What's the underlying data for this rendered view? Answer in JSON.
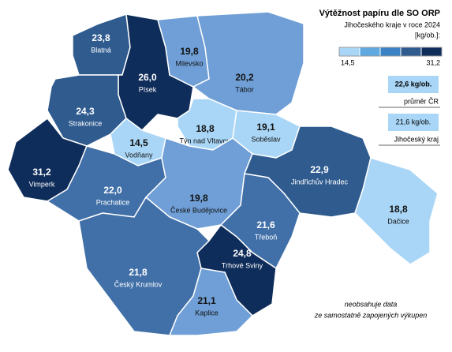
{
  "title": "Výtěžnost papíru dle SO ORP",
  "subtitle": "Jihočeského kraje v roce 2024",
  "unit": "[kg/ob.]:",
  "legend": {
    "colors": [
      "#a9d6f6",
      "#5fa8e0",
      "#3a82c4",
      "#2f5b8f",
      "#0f2d5a"
    ],
    "ticks": [
      {
        "value": 14.5,
        "label": "14,5"
      },
      {
        "value": 31.2,
        "label": "31,2"
      }
    ]
  },
  "regions": [
    {
      "name": "Blatná",
      "value": 23.8,
      "value_label": "23,8",
      "color": "#2f5b8f"
    },
    {
      "name": "Písek",
      "value": 26.0,
      "value_label": "26,0",
      "color": "#0f2d5a"
    },
    {
      "name": "Milevsko",
      "value": 19.8,
      "value_label": "19,8",
      "color": "#6f9fd6"
    },
    {
      "name": "Tábor",
      "value": 20.2,
      "value_label": "20,2",
      "color": "#6f9fd6"
    },
    {
      "name": "Strakonice",
      "value": 24.3,
      "value_label": "24,3",
      "color": "#2f5b8f"
    },
    {
      "name": "Vodňany",
      "value": 14.5,
      "value_label": "14,5",
      "color": "#a9d6f6"
    },
    {
      "name": "Týn nad Vltavou",
      "value": 18.8,
      "value_label": "18,8",
      "color": "#a9d6f6"
    },
    {
      "name": "Soběslav",
      "value": 19.1,
      "value_label": "19,1",
      "color": "#a9d6f6"
    },
    {
      "name": "Vimperk",
      "value": 31.2,
      "value_label": "31,2",
      "color": "#0f2d5a"
    },
    {
      "name": "Prachatice",
      "value": 22.0,
      "value_label": "22,0",
      "color": "#4170a8"
    },
    {
      "name": "České Budějovice",
      "value": 19.8,
      "value_label": "19,8",
      "color": "#6f9fd6"
    },
    {
      "name": "Jindřichův Hradec",
      "value": 22.9,
      "value_label": "22,9",
      "color": "#2f5b8f"
    },
    {
      "name": "Dačice",
      "value": 18.8,
      "value_label": "18,8",
      "color": "#a9d6f6"
    },
    {
      "name": "Třeboň",
      "value": 21.6,
      "value_label": "21,6",
      "color": "#4170a8"
    },
    {
      "name": "Trhové Sviny",
      "value": 24.8,
      "value_label": "24,8",
      "color": "#0f2d5a"
    },
    {
      "name": "Český Krumlov",
      "value": 21.8,
      "value_label": "21,8",
      "color": "#4170a8"
    },
    {
      "name": "Kaplice",
      "value": 21.1,
      "value_label": "21,1",
      "color": "#6f9fd6"
    }
  ],
  "reference": [
    {
      "value": 22.6,
      "value_label": "22,6 kg/ob.",
      "label": "průměr ČR"
    },
    {
      "value": 21.6,
      "value_label": "21,6 kg/ob.",
      "label": "Jihočeský kraj"
    }
  ],
  "note": [
    "neobsahuje data",
    "ze samostatně zapojených výkupen"
  ]
}
